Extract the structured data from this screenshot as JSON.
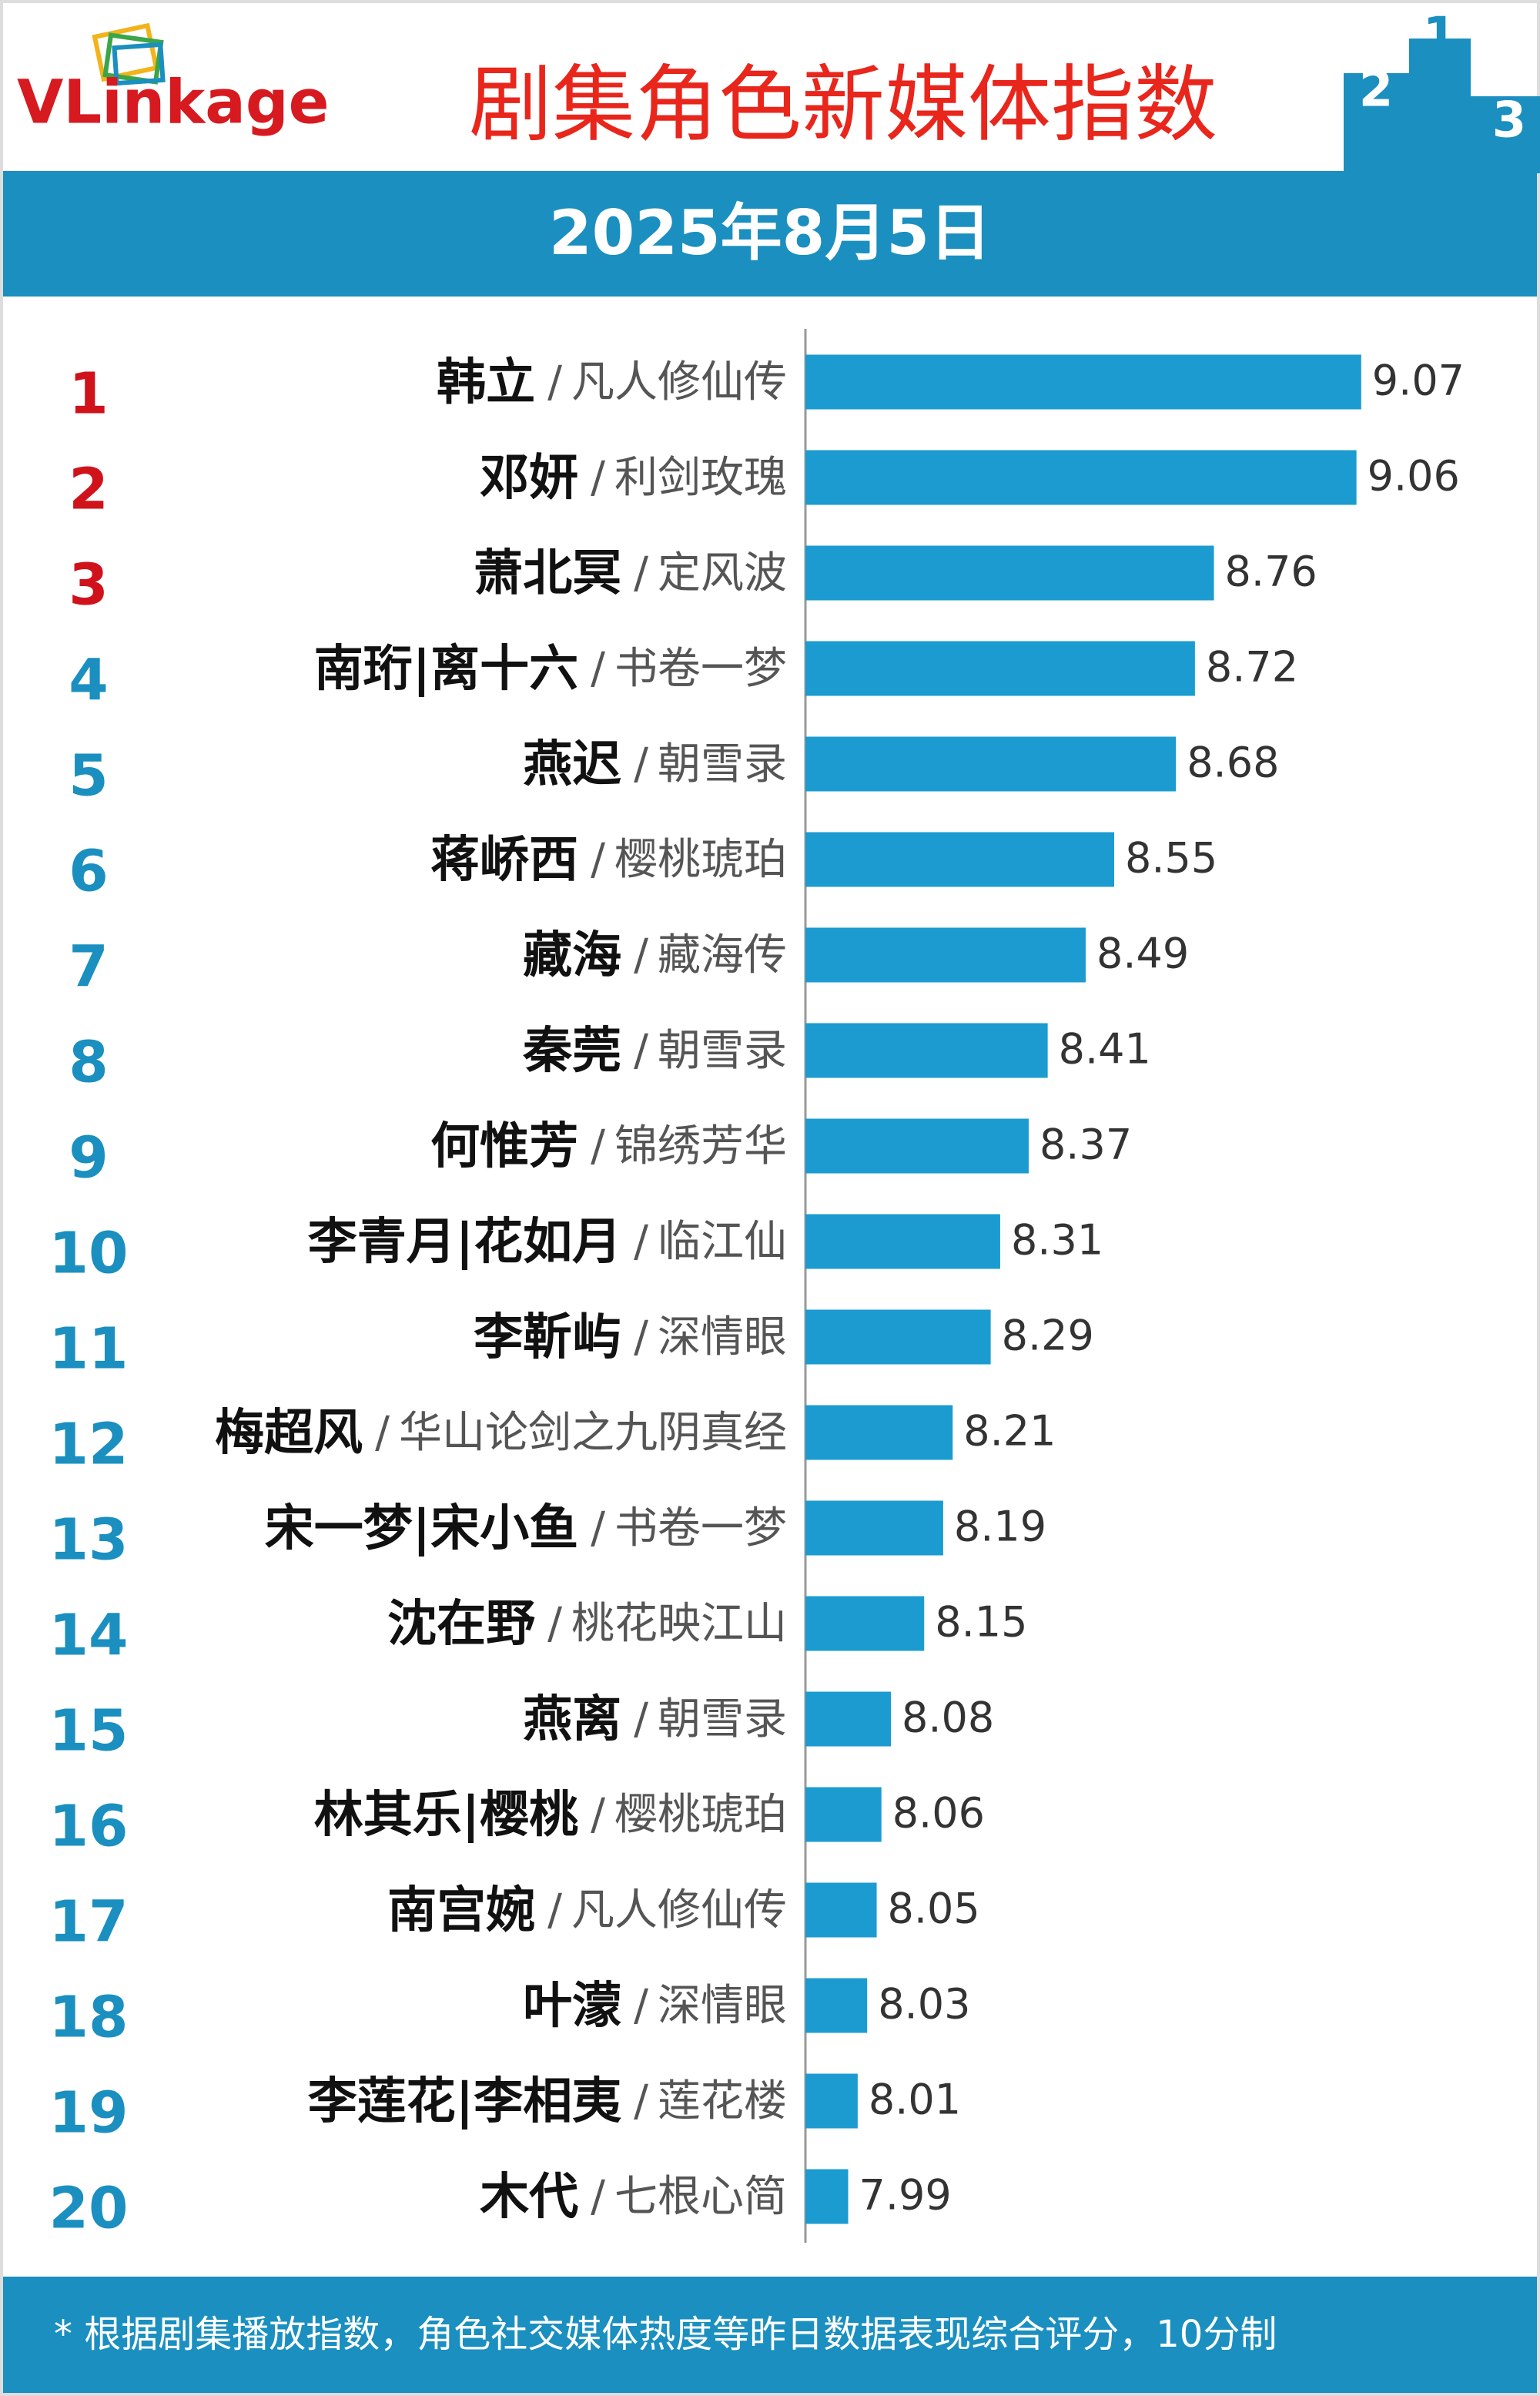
{
  "chart_data": {
    "type": "bar",
    "orientation": "horizontal",
    "logo": "VLinkage",
    "title": "剧集角色新媒体指数",
    "subtitle": "2025年8月5日",
    "podium": [
      "2",
      "1",
      "3"
    ],
    "ranks": [
      1,
      2,
      3,
      4,
      5,
      6,
      7,
      8,
      9,
      10,
      11,
      12,
      13,
      14,
      15,
      16,
      17,
      18,
      19,
      20
    ],
    "rank_colors": [
      "#d0121b",
      "#d0121b",
      "#d0121b",
      "#1a8fc0",
      "#1a8fc0",
      "#1a8fc0",
      "#1a8fc0",
      "#1a8fc0",
      "#1a8fc0",
      "#1a8fc0",
      "#1a8fc0",
      "#1a8fc0",
      "#1a8fc0",
      "#1a8fc0",
      "#1a8fc0",
      "#1a8fc0",
      "#1a8fc0",
      "#1a8fc0",
      "#1a8fc0",
      "#1a8fc0"
    ],
    "categories": [
      "韩立",
      "邓妍",
      "萧北冥",
      "南珩|离十六",
      "燕迟",
      "蒋峤西",
      "藏海",
      "秦莞",
      "何惟芳",
      "李青月|花如月",
      "李靳屿",
      "梅超风",
      "宋一梦|宋小鱼",
      "沈在野",
      "燕离",
      "林其乐|樱桃",
      "南宫婉",
      "叶濛",
      "李莲花|李相夷",
      "木代"
    ],
    "separator": "/",
    "dramas": [
      "凡人修仙传",
      "利剑玫瑰",
      "定风波",
      "书卷一梦",
      "朝雪录",
      "樱桃琥珀",
      "藏海传",
      "朝雪录",
      "锦绣芳华",
      "临江仙",
      "深情眼",
      "华山论剑之九阴真经",
      "书卷一梦",
      "桃花映江山",
      "朝雪录",
      "樱桃琥珀",
      "凡人修仙传",
      "深情眼",
      "莲花楼",
      "七根心简"
    ],
    "values": [
      9.07,
      9.06,
      8.76,
      8.72,
      8.68,
      8.55,
      8.49,
      8.41,
      8.37,
      8.31,
      8.29,
      8.21,
      8.19,
      8.15,
      8.08,
      8.06,
      8.05,
      8.03,
      8.01,
      7.99
    ],
    "color": "#1b9bd0",
    "xlim": [
      7.9,
      9.2
    ],
    "note": "* 根据剧集播放指数，角色社交媒体热度等昨日数据表现综合评分，10分制"
  }
}
